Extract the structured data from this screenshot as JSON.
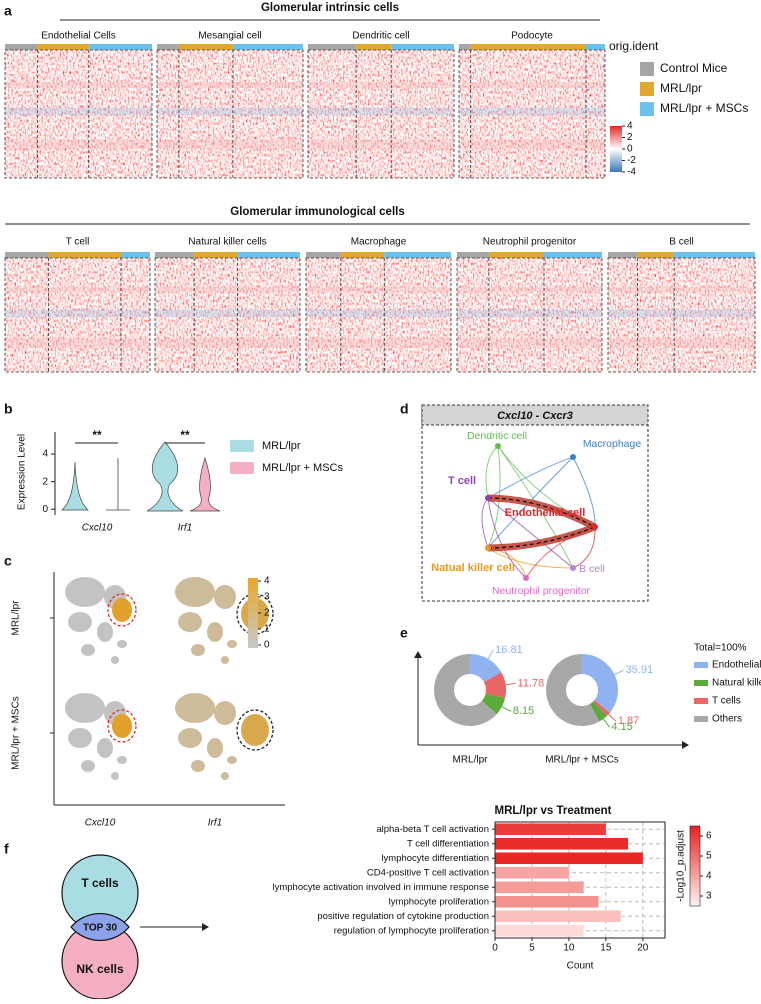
{
  "panel_labels": [
    "a",
    "b",
    "c",
    "d",
    "e",
    "f"
  ],
  "heatmap": {
    "groups": [
      {
        "title": "Glomerular intrinsic cells",
        "cells": [
          "Endothelial Cells",
          "Mesangial cell",
          "Dendritic cell",
          "Podocyte"
        ]
      },
      {
        "title": "Glomerular immunological cells",
        "cells": [
          "T cell",
          "Natural killer cells",
          "Macrophage",
          "Neutrophil progenitor",
          "B cell"
        ]
      }
    ],
    "annotation_label": "orig.ident",
    "legend": [
      {
        "name": "Control Mice",
        "color": "#a6a6a6"
      },
      {
        "name": "MRL/lpr",
        "color": "#e0a82e"
      },
      {
        "name": "MRL/lpr + MSCs",
        "color": "#6ec1ea"
      }
    ],
    "colorbar_ticks": [
      4,
      2,
      0,
      -2,
      -4
    ]
  },
  "violin": {
    "ylabel": "Expression Level",
    "yticks": [
      0,
      2,
      4
    ],
    "ylim": [
      -0.2,
      5.6
    ],
    "genes": [
      "Cxcl10",
      "Irf1"
    ],
    "significance": [
      "**",
      "**"
    ],
    "legend": [
      {
        "name": "MRL/lpr",
        "color": "#a9dde3"
      },
      {
        "name": "MRL/lpr + MSCs",
        "color": "#f4b0c2"
      }
    ]
  },
  "umap": {
    "rows": [
      "MRL/lpr",
      "MRL/lpr + MSCs"
    ],
    "genes": [
      "Cxcl10",
      "Irf1"
    ],
    "colorbar_ticks": [
      4,
      3,
      2,
      1,
      0
    ]
  },
  "network": {
    "title": "Cxcl10 - Cxcr3",
    "nodes": [
      {
        "label": "Dendritic cell",
        "color": "#5cbf4a"
      },
      {
        "label": "Macrophage",
        "color": "#3f7fc4"
      },
      {
        "label": "T cell",
        "color": "#8e44ad"
      },
      {
        "label": "Endothelial cell",
        "color": "#e0262b"
      },
      {
        "label": "Natual killer cell",
        "color": "#e89a1e"
      },
      {
        "label": "B cell",
        "color": "#b08ad0"
      },
      {
        "label": "Neutrophil progenitor",
        "color": "#e067c4"
      }
    ]
  },
  "donut_legend": {
    "title": "Total=100%"
  },
  "venn": {
    "circles": [
      "T cells",
      "NK cells"
    ],
    "overlap": "TOP 30"
  },
  "chart_data": [
    {
      "type": "donut",
      "title": "MRL/lpr",
      "categories": [
        "Endothelial cells",
        "T cells",
        "Natural killer cells",
        "Others"
      ],
      "values": [
        16.81,
        11.78,
        8.15,
        63.26
      ],
      "colors": [
        "#8fb3f0",
        "#e86666",
        "#5aaa3c",
        "#a8a8a8"
      ]
    },
    {
      "type": "donut",
      "title": "MRL/lpr + MSCs",
      "categories": [
        "Endothelial cells",
        "T cells",
        "Natural killer cells",
        "Others"
      ],
      "values": [
        35.91,
        1.87,
        4.15,
        58.07
      ],
      "colors": [
        "#8fb3f0",
        "#e86666",
        "#5aaa3c",
        "#a8a8a8"
      ]
    },
    {
      "type": "hbar",
      "title": "MRL/lpr vs Treatment",
      "categories": [
        "alpha-beta T cell activation",
        "T cell differentiation",
        "lymphocyte differentiation",
        "CD4-positive T cell activation",
        "lymphocyte activation involved in immune response",
        "lymphocyte proliferation",
        "positive regulation of cytokine production",
        "regulation of lymphocyte proliferation"
      ],
      "values": [
        15,
        18,
        20,
        10,
        12,
        14,
        17,
        12
      ],
      "color_values": [
        6.0,
        6.3,
        6.4,
        4.0,
        4.2,
        4.4,
        3.5,
        3.0
      ],
      "xlim": [
        0,
        23
      ],
      "xticks": [
        0,
        5,
        10,
        15,
        20
      ],
      "xlabel": "Count",
      "grid": true,
      "colorbar": {
        "label": "-Log10_p.adjust",
        "lim": [
          2.5,
          6.5
        ],
        "ticks": [
          3,
          4,
          5,
          6
        ],
        "colors": [
          "#fff4f2",
          "#e8221f"
        ]
      }
    }
  ]
}
